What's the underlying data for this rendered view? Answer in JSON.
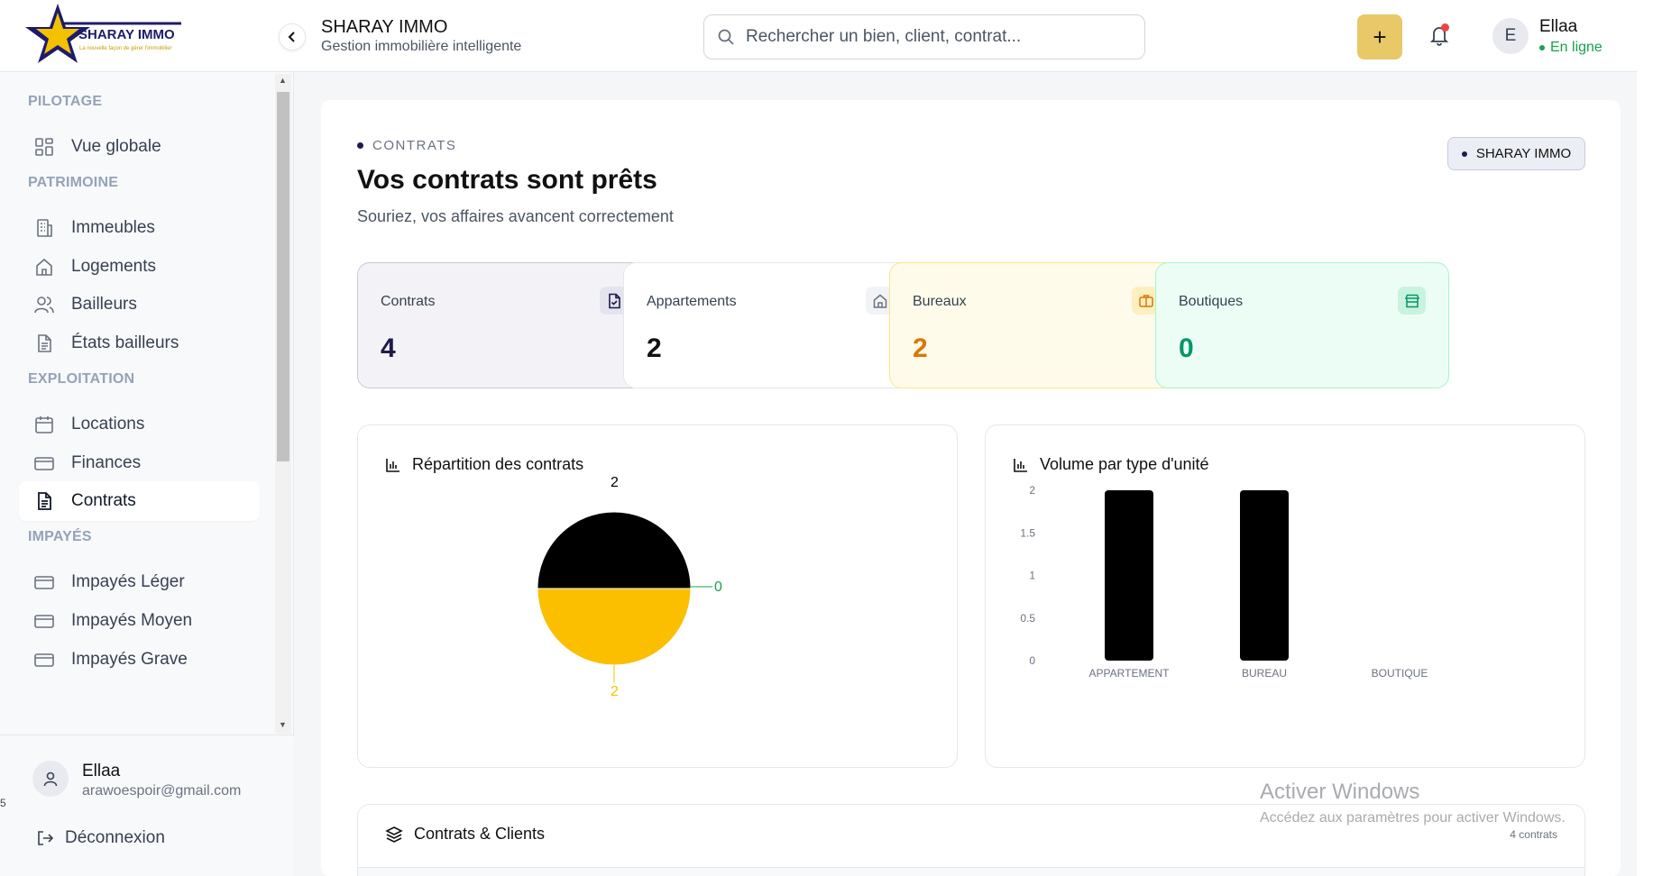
{
  "logo": {
    "name": "SHARAY IMMO",
    "tagline": "La nouvelle façon de gérer l'immobilier"
  },
  "sidebar": {
    "sections": [
      {
        "title": "PILOTAGE",
        "items": [
          {
            "label": "Vue globale",
            "icon": "grid-icon"
          }
        ]
      },
      {
        "title": "PATRIMOINE",
        "items": [
          {
            "label": "Immeubles",
            "icon": "building-icon"
          },
          {
            "label": "Logements",
            "icon": "home-icon"
          },
          {
            "label": "Bailleurs",
            "icon": "users-icon"
          },
          {
            "label": "États bailleurs",
            "icon": "document-icon"
          }
        ]
      },
      {
        "title": "EXPLOITATION",
        "items": [
          {
            "label": "Locations",
            "icon": "calendar-icon"
          },
          {
            "label": "Finances",
            "icon": "card-icon"
          },
          {
            "label": "Contrats",
            "icon": "file-text-icon",
            "active": true
          }
        ]
      },
      {
        "title": "IMPAYÉS",
        "items": [
          {
            "label": "Impayés Léger",
            "icon": "card-icon"
          },
          {
            "label": "Impayés Moyen",
            "icon": "card-icon"
          },
          {
            "label": "Impayés Grave",
            "icon": "card-icon"
          }
        ]
      }
    ],
    "user": {
      "name": "Ellaa",
      "email": "arawoespoir@gmail.com"
    },
    "logout_label": "Déconnexion"
  },
  "header": {
    "title": "SHARAY IMMO",
    "subtitle": "Gestion immobilière intelligente",
    "search_placeholder": "Rechercher un bien, client, contrat...",
    "plus_label": "+",
    "avatar_initial": "E",
    "user_name": "Ellaa",
    "user_status": "En ligne"
  },
  "main": {
    "eyebrow": "CONTRATS",
    "title": "Vos contrats sont prêts",
    "subtitle": "Souriez, vos affaires avancent correctement",
    "badge": "SHARAY IMMO",
    "stats": [
      {
        "label": "Contrats",
        "value": "4",
        "color": "#1e1b4b",
        "bg": "#f3f3f7",
        "border": "#c9cad6",
        "icon": "file-check-icon",
        "icon_bg": "#e4e4ee"
      },
      {
        "label": "Appartements",
        "value": "2",
        "color": "#111111",
        "bg": "#ffffff",
        "border": "#e5e7eb",
        "icon": "home-icon",
        "icon_bg": "#f1f3f6"
      },
      {
        "label": "Bureaux",
        "value": "2",
        "color": "#d97706",
        "bg": "#fffbeb",
        "border": "#fde68a",
        "icon": "briefcase-icon",
        "icon_bg": "#fdefc0"
      },
      {
        "label": "Boutiques",
        "value": "0",
        "color": "#059669",
        "bg": "#ecfdf5",
        "border": "#a7f3d0",
        "icon": "store-icon",
        "icon_bg": "#c9f3df"
      }
    ],
    "panels": {
      "pie_title": "Répartition des contrats",
      "bar_title": "Volume par type d'unité",
      "table_title": "Contrats & Clients",
      "table_count": "4 contrats"
    }
  },
  "chart_data": [
    {
      "type": "pie",
      "categories": [
        "APPARTEMENT",
        "BUREAU",
        "BOUTIQUE"
      ],
      "values": [
        2,
        2,
        0
      ],
      "colors": [
        "#000000",
        "#fbbf00",
        "#16a34a"
      ],
      "labels": [
        "2",
        "2",
        "0"
      ]
    },
    {
      "type": "bar",
      "categories": [
        "APPARTEMENT",
        "BUREAU",
        "BOUTIQUE"
      ],
      "values": [
        2,
        2,
        0
      ],
      "ylim": [
        0,
        2
      ],
      "yticks": [
        "0",
        "0.5",
        "1",
        "1.5",
        "2"
      ],
      "color": "#000000"
    }
  ],
  "overlay": {
    "windows_title": "Activer Windows",
    "windows_sub": "Accédez aux paramètres pour activer Windows.",
    "stray_char": "5"
  }
}
